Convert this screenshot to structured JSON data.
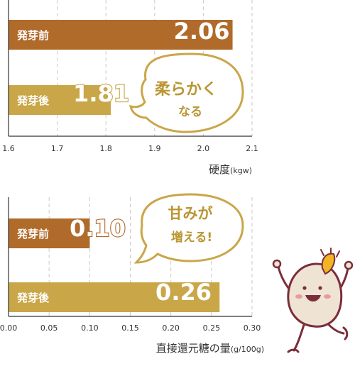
{
  "colors": {
    "before": "#b06a2a",
    "after": "#c9a648",
    "bubble_text": "#b99632",
    "axis": "#333333",
    "grid": "#c9c9c9",
    "mascot_outline": "#7a2e3a",
    "mascot_fill": "#efe3d3",
    "mascot_cheek": "#e79aa0",
    "mascot_sprout": "#f2b324"
  },
  "chart_data": [
    {
      "type": "bar",
      "orientation": "horizontal",
      "categories": [
        "発芽前",
        "発芽後"
      ],
      "values": [
        2.06,
        1.81
      ],
      "value_labels": [
        "2.06",
        "1.81"
      ],
      "xlim": [
        1.6,
        2.1
      ],
      "xticks": [
        "1.6",
        "1.7",
        "1.8",
        "1.9",
        "2.0",
        "2.1"
      ],
      "xlabel": "硬度",
      "xunit": "(kgw)",
      "grid": "vertical dashed",
      "annotation": {
        "line1": "柔らかく",
        "line2": "なる"
      }
    },
    {
      "type": "bar",
      "orientation": "horizontal",
      "categories": [
        "発芽前",
        "発芽後"
      ],
      "values": [
        0.1,
        0.26
      ],
      "value_labels": [
        "0.10",
        "0.26"
      ],
      "xlim": [
        0.0,
        0.3
      ],
      "xticks": [
        "0.00",
        "0.05",
        "0.10",
        "0.15",
        "0.20",
        "0.25",
        "0.30"
      ],
      "xlabel": "直接還元糖の量",
      "xunit": "(g/100g)",
      "grid": "vertical dashed",
      "annotation": {
        "line1": "甘みが",
        "line2": "増える!"
      }
    }
  ],
  "mascot": {
    "icon": "sprouted-bean-mascot-icon"
  }
}
